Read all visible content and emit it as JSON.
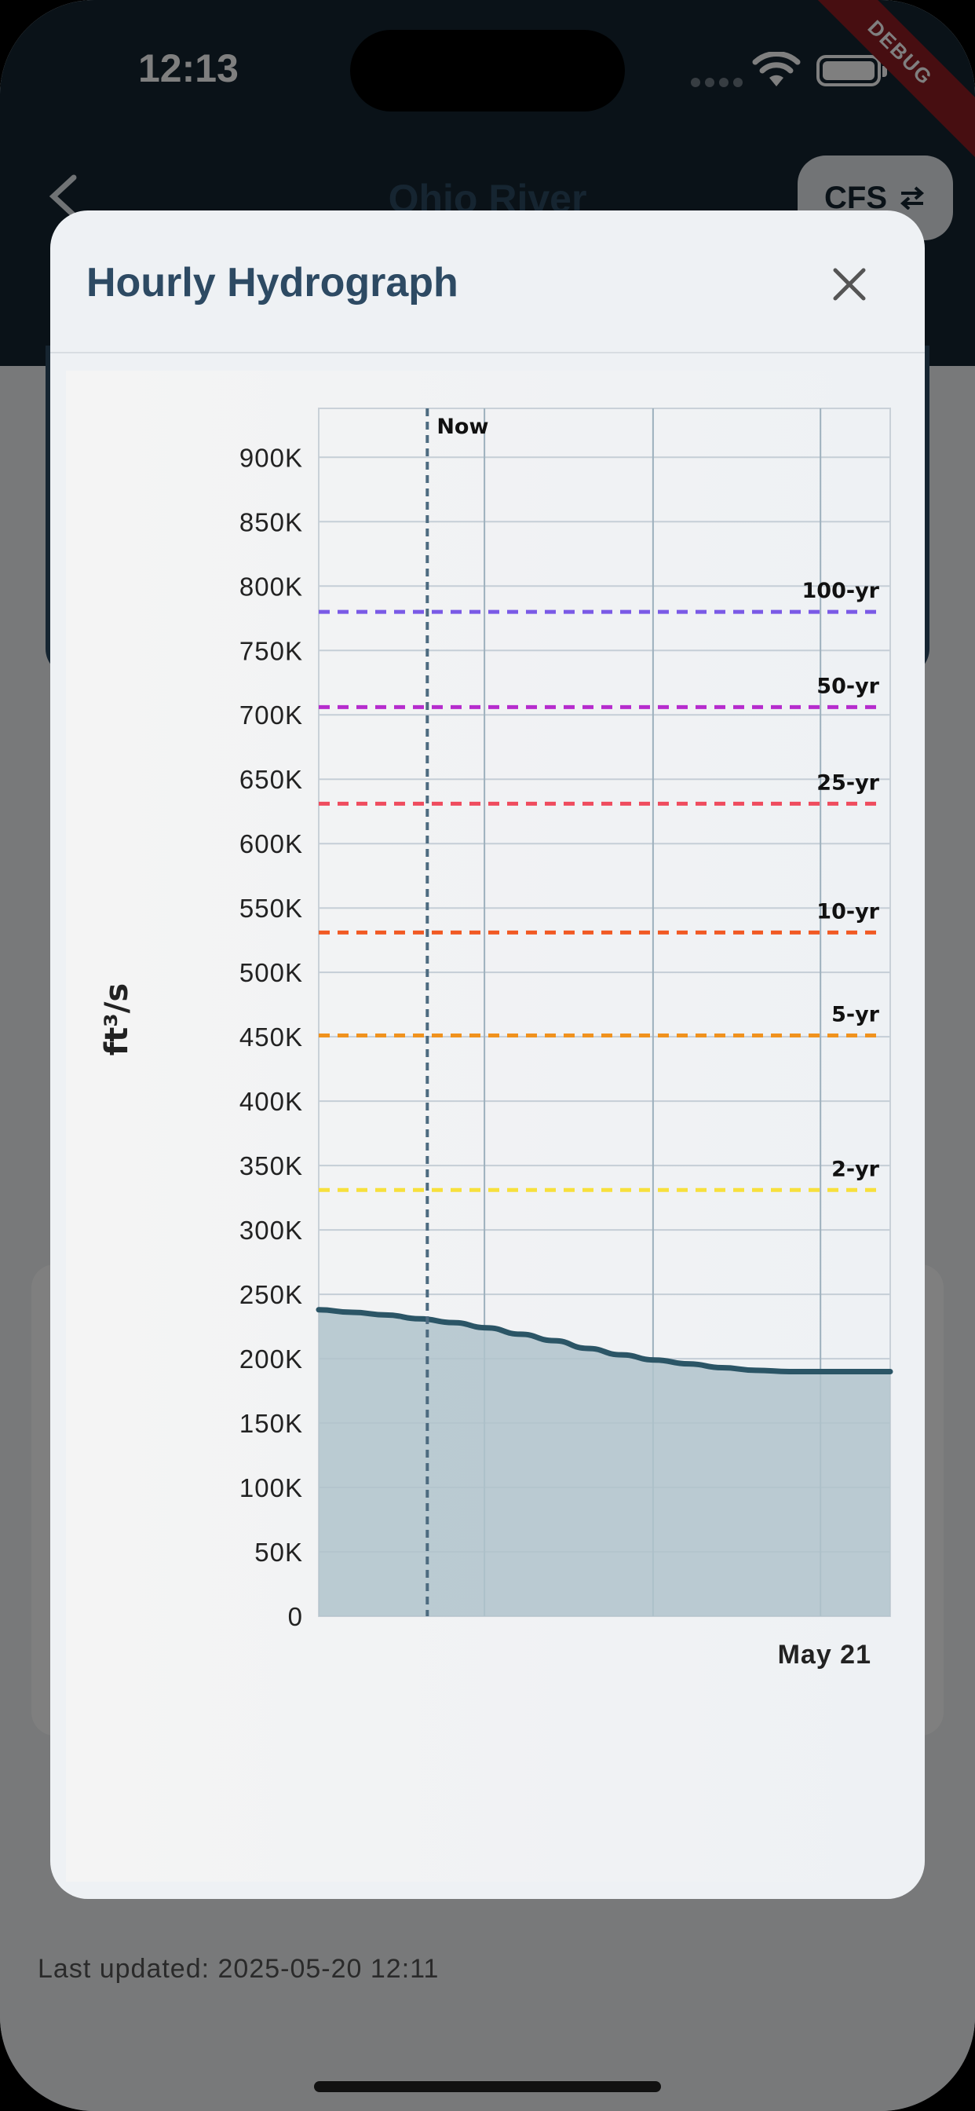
{
  "status_bar": {
    "time": "12:13",
    "debug_label": "DEBUG"
  },
  "header": {
    "title": "Ohio River",
    "unit_toggle_label": "CFS",
    "unit_toggle_icon": "swap-arrows-icon"
  },
  "footer": {
    "last_updated": "Last updated: 2025-05-20 12:11"
  },
  "modal": {
    "title": "Hourly Hydrograph",
    "close_icon": "close-icon"
  },
  "colors": {
    "appbar": "#142430",
    "title": "#2d4a63",
    "flow_line": "#2b5566",
    "flow_fill": "#b0c3cb",
    "now_line": "#4d6b80",
    "rp_100": "#7a5ae6",
    "rp_50": "#b62ccd",
    "rp_25": "#ef4c5e",
    "rp_10": "#f15a24",
    "rp_5": "#f0921e",
    "rp_2": "#f7e03c"
  },
  "chart_data": {
    "type": "area",
    "title": "",
    "xlabel": "",
    "ylabel": "ft³/s",
    "ylim": [
      0,
      938000
    ],
    "yticks": [
      0,
      50000,
      100000,
      150000,
      200000,
      250000,
      300000,
      350000,
      400000,
      450000,
      500000,
      550000,
      600000,
      650000,
      700000,
      750000,
      800000,
      850000,
      900000
    ],
    "ytick_labels": [
      "0",
      "50K",
      "100K",
      "150K",
      "200K",
      "250K",
      "300K",
      "350K",
      "400K",
      "450K",
      "500K",
      "550K",
      "600K",
      "650K",
      "700K",
      "750K",
      "800K",
      "850K",
      "900K"
    ],
    "x_tick_labels": [
      "May 21"
    ],
    "now_label": "Now",
    "grid": true,
    "series": [
      {
        "values": [
          238000,
          236000,
          234000,
          231000,
          228000,
          224000,
          219000,
          214000,
          208000,
          203000,
          199000,
          196000,
          193000,
          191000,
          190000,
          190000,
          190000,
          190000
        ]
      }
    ],
    "return_periods": [
      {
        "label": "100-yr",
        "value": 780000,
        "color_key": "rp_100"
      },
      {
        "label": "50-yr",
        "value": 706000,
        "color_key": "rp_50"
      },
      {
        "label": "25-yr",
        "value": 631000,
        "color_key": "rp_25"
      },
      {
        "label": "10-yr",
        "value": 531000,
        "color_key": "rp_10"
      },
      {
        "label": "5-yr",
        "value": 451000,
        "color_key": "rp_5"
      },
      {
        "label": "2-yr",
        "value": 331000,
        "color_key": "rp_2"
      }
    ]
  }
}
